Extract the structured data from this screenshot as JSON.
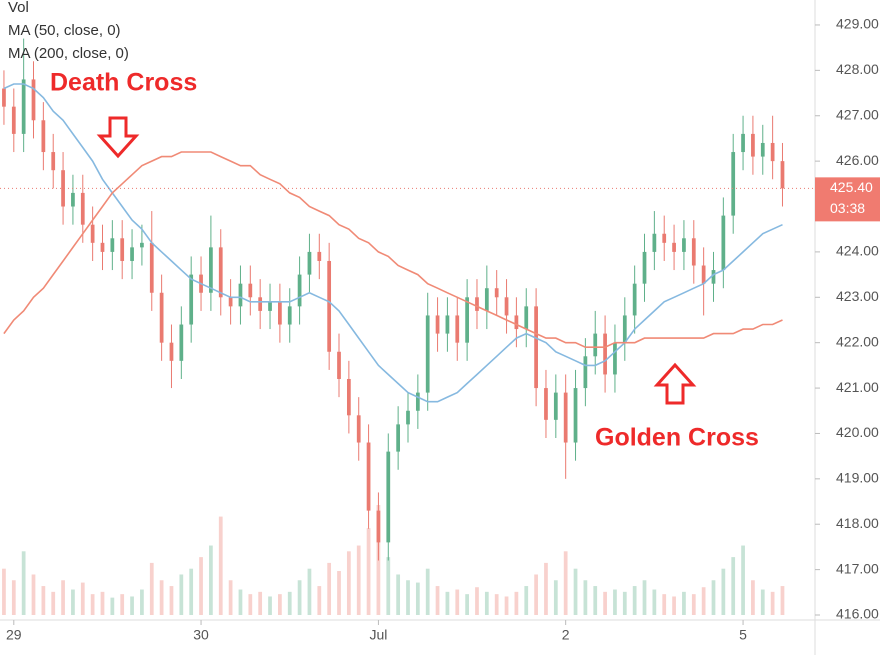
{
  "chart_data": {
    "type": "candlestick",
    "legend": [
      "Vol",
      "MA (50, close, 0)",
      "MA (200, close, 0)"
    ],
    "annotations": [
      "Death Cross",
      "Golden Cross"
    ],
    "xlim": [
      -0.4,
      82.3
    ],
    "xticks": [
      {
        "value": 1,
        "label": "29"
      },
      {
        "value": 20,
        "label": "30"
      },
      {
        "value": 38,
        "label": "Jul"
      },
      {
        "value": 57,
        "label": "2"
      },
      {
        "value": 75,
        "label": "5"
      }
    ],
    "ylim": [
      415.89,
      429.55
    ],
    "yticks": [
      {
        "value": 416,
        "label": "416.00"
      },
      {
        "value": 417,
        "label": "417.00"
      },
      {
        "value": 418,
        "label": "418.00"
      },
      {
        "value": 419,
        "label": "419.00"
      },
      {
        "value": 420,
        "label": "420.00"
      },
      {
        "value": 421,
        "label": "421.00"
      },
      {
        "value": 422,
        "label": "422.00"
      },
      {
        "value": 423,
        "label": "423.00"
      },
      {
        "value": 424,
        "label": "424.00"
      },
      {
        "value": 425,
        "label": "425.00"
      },
      {
        "value": 426,
        "label": "426.00"
      },
      {
        "value": 427,
        "label": "427.00"
      },
      {
        "value": 428,
        "label": "428.00"
      },
      {
        "value": 429,
        "label": "429.00"
      }
    ],
    "last_price": {
      "value": 425.4,
      "label": "425.40"
    },
    "countdown": "03:38",
    "up_color": "#5fb08a",
    "down_color": "#ea7a70",
    "open": [
      427.6,
      427.2,
      426.6,
      427.8,
      426.9,
      426.2,
      425.8,
      425.0,
      425.3,
      424.6,
      424.2,
      424.0,
      424.3,
      423.8,
      424.1,
      424.2,
      423.1,
      422.0,
      421.6,
      422.4,
      423.5,
      423.1,
      424.1,
      423.0,
      422.8,
      423.3,
      423.0,
      422.7,
      422.9,
      422.4,
      422.8,
      423.5,
      424.0,
      423.8,
      421.8,
      421.2,
      420.4,
      419.8,
      418.3,
      417.6,
      419.6,
      420.2,
      420.5,
      420.9,
      422.6,
      422.2,
      422.6,
      422.0,
      423.0,
      422.7,
      423.2,
      423.0,
      422.6,
      422.3,
      422.8,
      421.0,
      420.3,
      420.9,
      419.8,
      421.0,
      421.7,
      422.2,
      421.3,
      422.0,
      422.6,
      423.3,
      424.0,
      424.4,
      424.2,
      424.0,
      424.3,
      423.7,
      423.3,
      423.6,
      424.8,
      426.2,
      426.6,
      426.1,
      426.4,
      426.0
    ],
    "high": [
      428.0,
      427.6,
      428.7,
      428.2,
      427.3,
      426.6,
      426.2,
      425.7,
      425.7,
      425.0,
      424.6,
      424.7,
      424.7,
      424.5,
      424.6,
      424.9,
      423.5,
      422.4,
      422.8,
      423.9,
      423.9,
      424.8,
      424.5,
      423.4,
      423.7,
      423.7,
      423.4,
      423.3,
      423.3,
      423.2,
      423.9,
      424.4,
      424.4,
      424.2,
      422.2,
      421.6,
      420.8,
      420.2,
      418.7,
      420.0,
      420.6,
      420.9,
      421.3,
      423.1,
      423.0,
      423.0,
      423.0,
      423.4,
      423.4,
      423.7,
      423.6,
      423.4,
      423.0,
      423.2,
      423.2,
      421.4,
      421.3,
      421.3,
      421.4,
      422.1,
      422.7,
      422.6,
      422.4,
      423.0,
      423.7,
      424.4,
      424.9,
      424.8,
      424.6,
      424.7,
      424.7,
      424.1,
      424.0,
      425.2,
      426.6,
      427.0,
      427.0,
      426.8,
      427.0,
      426.4
    ],
    "low": [
      426.8,
      426.2,
      426.2,
      426.5,
      425.8,
      425.4,
      424.6,
      424.6,
      424.2,
      423.8,
      423.6,
      423.6,
      423.4,
      423.4,
      423.7,
      422.7,
      421.6,
      421.0,
      421.2,
      422.0,
      422.7,
      422.7,
      422.6,
      422.4,
      422.4,
      422.6,
      422.3,
      422.3,
      422.0,
      422.0,
      422.4,
      423.1,
      423.4,
      421.4,
      420.8,
      420.0,
      419.4,
      417.9,
      417.2,
      417.2,
      419.2,
      419.8,
      420.1,
      420.5,
      421.8,
      421.8,
      421.6,
      421.6,
      422.3,
      422.3,
      422.6,
      422.2,
      421.9,
      421.9,
      420.6,
      419.9,
      419.9,
      419.0,
      419.4,
      420.6,
      421.3,
      420.9,
      420.9,
      421.6,
      422.2,
      422.9,
      423.6,
      423.8,
      423.6,
      423.6,
      423.3,
      422.6,
      422.9,
      423.2,
      424.4,
      425.8,
      425.7,
      425.7,
      425.6,
      425.0
    ],
    "close": [
      427.2,
      426.6,
      427.8,
      426.9,
      426.2,
      425.8,
      425.0,
      425.3,
      424.6,
      424.2,
      424.0,
      424.3,
      423.8,
      424.1,
      424.2,
      423.1,
      422.0,
      421.6,
      422.4,
      423.5,
      423.1,
      424.1,
      423.0,
      422.8,
      423.3,
      423.0,
      422.7,
      422.9,
      422.4,
      422.8,
      423.5,
      424.0,
      423.8,
      421.8,
      421.2,
      420.4,
      419.8,
      418.3,
      417.6,
      419.6,
      420.2,
      420.5,
      420.9,
      422.6,
      422.2,
      422.6,
      422.0,
      423.0,
      422.7,
      423.2,
      423.0,
      422.6,
      422.3,
      422.8,
      421.0,
      420.3,
      420.9,
      419.8,
      421.0,
      421.7,
      422.2,
      421.3,
      422.0,
      422.6,
      423.3,
      424.0,
      424.4,
      424.2,
      424.0,
      424.3,
      423.7,
      423.3,
      423.6,
      424.8,
      426.2,
      426.6,
      426.1,
      426.4,
      426.0,
      425.4
    ],
    "volume": [
      40,
      30,
      55,
      35,
      25,
      20,
      30,
      22,
      28,
      18,
      20,
      15,
      18,
      16,
      22,
      45,
      30,
      25,
      35,
      40,
      50,
      60,
      85,
      30,
      22,
      18,
      20,
      16,
      18,
      20,
      30,
      40,
      25,
      45,
      38,
      55,
      60,
      75,
      95,
      50,
      35,
      30,
      28,
      40,
      25,
      20,
      22,
      18,
      24,
      20,
      18,
      16,
      20,
      25,
      35,
      45,
      30,
      55,
      40,
      30,
      25,
      20,
      22,
      20,
      25,
      30,
      22,
      18,
      16,
      20,
      18,
      24,
      30,
      40,
      50,
      60,
      30,
      22,
      20,
      25
    ],
    "series": [
      {
        "name": "MA (50, close, 0)",
        "color": "#86b9e0",
        "values": [
          427.6,
          427.7,
          427.7,
          427.6,
          427.4,
          427.1,
          426.9,
          426.6,
          426.3,
          426.0,
          425.6,
          425.3,
          425.0,
          424.7,
          424.5,
          424.2,
          424.0,
          423.8,
          423.6,
          423.4,
          423.3,
          423.2,
          423.1,
          423.0,
          423.0,
          422.9,
          422.9,
          422.9,
          422.9,
          422.9,
          423.0,
          423.1,
          423.0,
          422.9,
          422.7,
          422.4,
          422.1,
          421.8,
          421.5,
          421.3,
          421.1,
          420.9,
          420.8,
          420.7,
          420.7,
          420.8,
          420.9,
          421.1,
          421.3,
          421.5,
          421.7,
          421.9,
          422.1,
          422.2,
          422.1,
          422.0,
          421.8,
          421.7,
          421.6,
          421.5,
          421.5,
          421.6,
          421.8,
          422.0,
          422.3,
          422.5,
          422.7,
          422.9,
          423.0,
          423.1,
          423.2,
          423.3,
          423.5,
          423.6,
          423.8,
          424.0,
          424.2,
          424.4,
          424.5,
          424.6
        ]
      },
      {
        "name": "MA (200, close, 0)",
        "color": "#f08a76",
        "values": [
          422.2,
          422.5,
          422.7,
          423.0,
          423.2,
          423.5,
          423.8,
          424.1,
          424.4,
          424.7,
          425.0,
          425.3,
          425.5,
          425.7,
          425.9,
          426.0,
          426.1,
          426.1,
          426.2,
          426.2,
          426.2,
          426.2,
          426.1,
          426.0,
          425.9,
          425.9,
          425.7,
          425.6,
          425.5,
          425.3,
          425.2,
          425.0,
          424.9,
          424.8,
          424.6,
          424.5,
          424.3,
          424.2,
          424.0,
          423.9,
          423.7,
          423.6,
          423.5,
          423.3,
          423.2,
          423.1,
          423.0,
          422.9,
          422.8,
          422.7,
          422.6,
          422.5,
          422.4,
          422.3,
          422.2,
          422.1,
          422.1,
          422.0,
          422.0,
          421.9,
          421.9,
          421.9,
          422.0,
          422.0,
          422.0,
          422.1,
          422.1,
          422.1,
          422.1,
          422.1,
          422.1,
          422.1,
          422.2,
          422.2,
          422.2,
          422.3,
          422.3,
          422.4,
          422.4,
          422.5
        ]
      }
    ]
  }
}
